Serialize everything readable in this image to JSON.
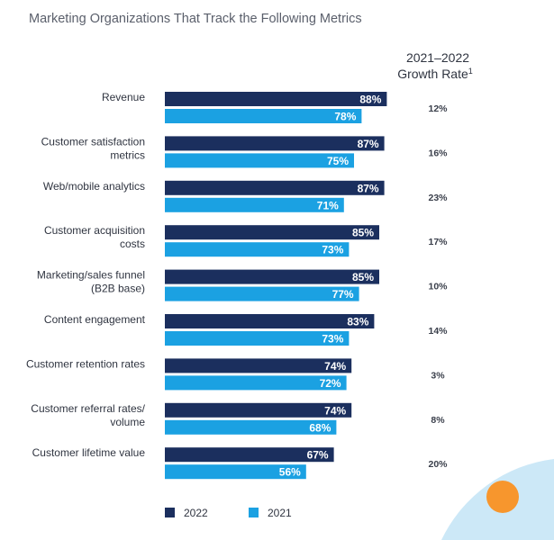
{
  "chart_data": {
    "type": "bar",
    "orientation": "horizontal",
    "title": "Marketing Organizations That Track the Following Metrics",
    "categories": [
      [
        "Revenue"
      ],
      [
        "Customer satisfaction",
        "metrics"
      ],
      [
        "Web/mobile analytics"
      ],
      [
        "Customer acquisition",
        "costs"
      ],
      [
        "Marketing/sales funnel",
        "(B2B base)"
      ],
      [
        "Content engagement"
      ],
      [
        "Customer retention rates"
      ],
      [
        "Customer referral rates/",
        "volume"
      ],
      [
        "Customer lifetime value"
      ]
    ],
    "series": [
      {
        "name": "2022",
        "color": "#1b2f5e",
        "values": [
          88,
          87,
          87,
          85,
          85,
          83,
          74,
          74,
          67
        ]
      },
      {
        "name": "2021",
        "color": "#1ba1e2",
        "values": [
          78,
          75,
          71,
          73,
          77,
          73,
          72,
          68,
          56
        ]
      }
    ],
    "value_suffix": "%",
    "growth_header": [
      "2021–2022",
      "Growth Rate"
    ],
    "growth_footnote": "1",
    "growth_rates": [
      "12%",
      "16%",
      "23%",
      "17%",
      "10%",
      "14%",
      "3%",
      "8%",
      "20%"
    ],
    "xlim": [
      0,
      100
    ],
    "legend_position": "bottom-left"
  },
  "decor": {
    "circle_color": "#f7962d",
    "arc_color": "#cce8f7"
  }
}
